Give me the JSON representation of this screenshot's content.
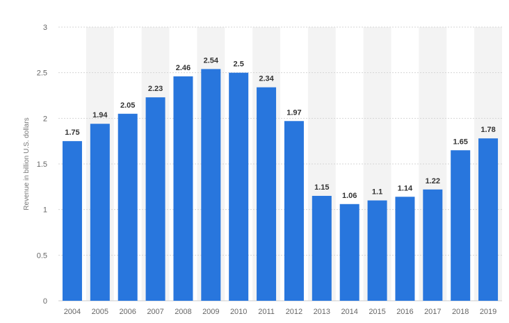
{
  "chart_data": {
    "type": "bar",
    "title": "",
    "xlabel": "",
    "ylabel": "Revenue in billion U.S. dollars",
    "categories": [
      "2004",
      "2005",
      "2006",
      "2007",
      "2008",
      "2009",
      "2010",
      "2011",
      "2012",
      "2013",
      "2014",
      "2015",
      "2016",
      "2017",
      "2018",
      "2019"
    ],
    "values": [
      1.75,
      1.94,
      2.05,
      2.23,
      2.46,
      2.54,
      2.5,
      2.34,
      1.97,
      1.15,
      1.06,
      1.1,
      1.14,
      1.22,
      1.65,
      1.78
    ],
    "value_labels": [
      "1.75",
      "1.94",
      "2.05",
      "2.23",
      "2.46",
      "2.54",
      "2.5",
      "2.34",
      "1.97",
      "1.15",
      "1.06",
      "1.1",
      "1.14",
      "1.22",
      "1.65",
      "1.78"
    ],
    "ylim": [
      0,
      3
    ],
    "yticks": [
      0,
      0.5,
      1,
      1.5,
      2,
      2.5,
      3
    ],
    "ytick_labels": [
      "0",
      "0.5",
      "1",
      "1.5",
      "2",
      "2.5",
      "3"
    ],
    "grid": true,
    "legend": "none",
    "colors": {
      "bar": "#2876dd",
      "band": "#f3f3f3",
      "grid": "#d5d5d5"
    }
  }
}
